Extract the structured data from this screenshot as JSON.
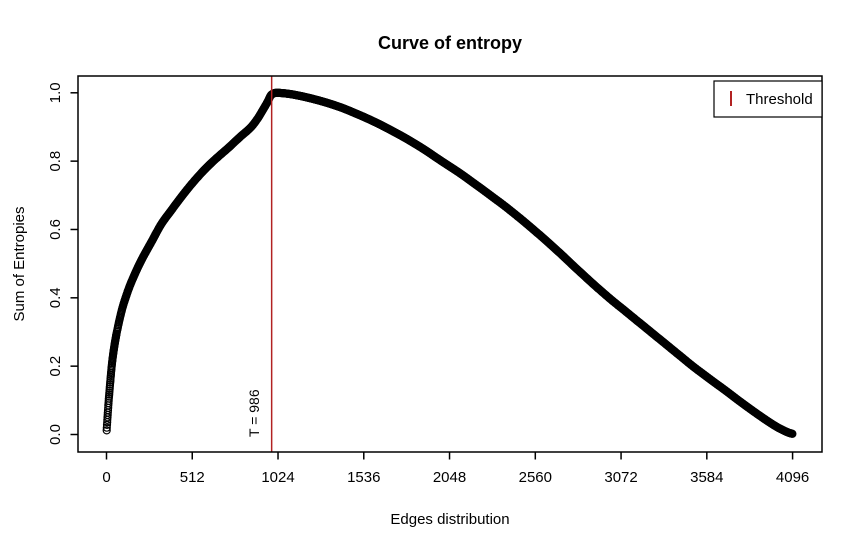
{
  "chart_data": {
    "type": "scatter",
    "title": "Curve of entropy",
    "xlabel": "Edges distribution",
    "ylabel": "Sum of Entropies",
    "xlim": [
      0,
      4096
    ],
    "ylim": [
      0.0,
      1.0
    ],
    "grid": false,
    "marker": "open-circle",
    "x_tick_values": [
      0,
      512,
      1024,
      1536,
      2048,
      2560,
      3072,
      3584,
      4096
    ],
    "x_tick_labels": [
      "0",
      "512",
      "1024",
      "1536",
      "2048",
      "2560",
      "3072",
      "3584",
      "4096"
    ],
    "y_tick_values": [
      0.0,
      0.2,
      0.4,
      0.6,
      0.8,
      1.0
    ],
    "y_tick_labels": [
      "0.0",
      "0.2",
      "0.4",
      "0.6",
      "0.8",
      "1.0"
    ],
    "threshold": {
      "value": 986,
      "label": "T = 986",
      "color": "#b22222"
    },
    "legend": {
      "label": "Threshold",
      "position": "topright",
      "marker_color": "#b22222"
    },
    "series": [
      {
        "name": "sum_of_entropies",
        "color": "#000000",
        "points_sampled": [
          [
            1,
            0.012
          ],
          [
            2,
            0.02
          ],
          [
            3,
            0.028
          ],
          [
            4,
            0.036
          ],
          [
            5,
            0.043
          ],
          [
            6,
            0.05
          ],
          [
            8,
            0.064
          ],
          [
            10,
            0.078
          ],
          [
            12,
            0.092
          ],
          [
            14,
            0.105
          ],
          [
            17,
            0.122
          ],
          [
            20,
            0.14
          ],
          [
            24,
            0.163
          ],
          [
            28,
            0.185
          ],
          [
            33,
            0.209
          ],
          [
            40,
            0.236
          ],
          [
            48,
            0.262
          ],
          [
            58,
            0.29
          ],
          [
            70,
            0.319
          ],
          [
            85,
            0.351
          ],
          [
            100,
            0.379
          ],
          [
            120,
            0.409
          ],
          [
            140,
            0.436
          ],
          [
            165,
            0.465
          ],
          [
            195,
            0.497
          ],
          [
            230,
            0.53
          ],
          [
            270,
            0.565
          ],
          [
            326,
            0.615
          ],
          [
            390,
            0.658
          ],
          [
            446,
            0.695
          ],
          [
            512,
            0.735
          ],
          [
            585,
            0.775
          ],
          [
            660,
            0.81
          ],
          [
            730,
            0.84
          ],
          [
            800,
            0.872
          ],
          [
            864,
            0.9
          ],
          [
            900,
            0.923
          ],
          [
            930,
            0.947
          ],
          [
            960,
            0.972
          ],
          [
            986,
            0.995
          ],
          [
            1015,
            1.0
          ],
          [
            1050,
            0.999
          ],
          [
            1100,
            0.996
          ],
          [
            1200,
            0.986
          ],
          [
            1300,
            0.973
          ],
          [
            1400,
            0.957
          ],
          [
            1500,
            0.937
          ],
          [
            1600,
            0.915
          ],
          [
            1700,
            0.89
          ],
          [
            1800,
            0.863
          ],
          [
            1900,
            0.833
          ],
          [
            2000,
            0.8
          ],
          [
            2100,
            0.768
          ],
          [
            2200,
            0.733
          ],
          [
            2300,
            0.697
          ],
          [
            2400,
            0.66
          ],
          [
            2500,
            0.62
          ],
          [
            2600,
            0.578
          ],
          [
            2700,
            0.534
          ],
          [
            2800,
            0.488
          ],
          [
            2900,
            0.443
          ],
          [
            3000,
            0.4
          ],
          [
            3100,
            0.36
          ],
          [
            3200,
            0.32
          ],
          [
            3300,
            0.28
          ],
          [
            3400,
            0.24
          ],
          [
            3500,
            0.2
          ],
          [
            3600,
            0.163
          ],
          [
            3700,
            0.127
          ],
          [
            3800,
            0.09
          ],
          [
            3900,
            0.055
          ],
          [
            3960,
            0.035
          ],
          [
            4010,
            0.02
          ],
          [
            4050,
            0.01
          ],
          [
            4080,
            0.004
          ],
          [
            4096,
            0.002
          ]
        ]
      }
    ]
  },
  "colors": {
    "curve": "#000000",
    "threshold": "#b22222",
    "box": "#000000",
    "background": "#ffffff"
  }
}
